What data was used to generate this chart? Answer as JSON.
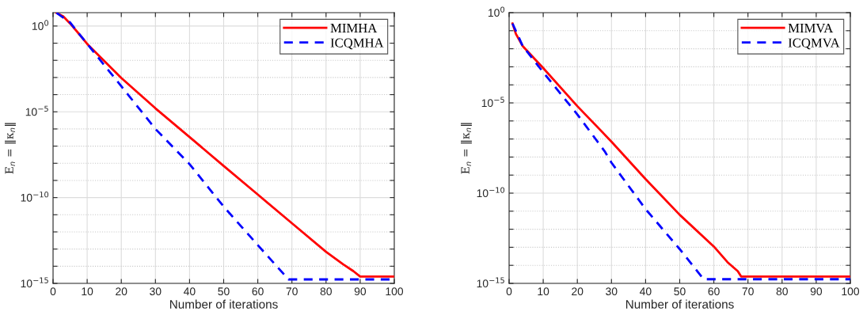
{
  "chart_data": [
    {
      "type": "line",
      "xlabel": "Number of iterations",
      "ylabel": "E$_{n}$ = ‖κ$_{n}$‖",
      "log": "y",
      "grid": true,
      "legend": "top right",
      "xlim": [
        0,
        100
      ],
      "xticks": [
        0,
        10,
        20,
        30,
        40,
        50,
        60,
        70,
        80,
        90,
        100
      ],
      "ylim": [
        1e-15,
        6
      ],
      "yticks": [
        {
          "value": 1,
          "label": "10$^{0}$"
        },
        {
          "value": 0.1,
          "label": null
        },
        {
          "value": 0.01,
          "label": null
        },
        {
          "value": 0.001,
          "label": null
        },
        {
          "value": 0.0001,
          "label": null
        },
        {
          "value": 1e-05,
          "label": "10$^{−5}$"
        },
        {
          "value": 1e-06,
          "label": null
        },
        {
          "value": 1e-07,
          "label": null
        },
        {
          "value": 1e-08,
          "label": null
        },
        {
          "value": 1e-09,
          "label": null
        },
        {
          "value": 1e-10,
          "label": "10$^{−10}$"
        },
        {
          "value": 1e-11,
          "label": null
        },
        {
          "value": 1e-12,
          "label": null
        },
        {
          "value": 1e-13,
          "label": null
        },
        {
          "value": 1e-14,
          "label": null
        },
        {
          "value": 1e-15,
          "label": "10$^{−15}$"
        }
      ],
      "series": [
        {
          "name": "MIMHA",
          "color": "#ff0000",
          "line_style": "solid",
          "x": [
            1,
            3,
            5,
            7,
            10,
            20,
            30,
            40,
            50,
            60,
            70,
            80,
            85,
            88,
            90,
            100
          ],
          "values": [
            5.9,
            3.6,
            1.4,
            0.48,
            0.091,
            0.00093,
            1.6e-05,
            3.4e-07,
            7e-09,
            1.5e-10,
            3.2e-12,
            6.9e-14,
            1.3e-14,
            5.2e-15,
            2.5e-15,
            2.5e-15
          ]
        },
        {
          "name": "ICQMHA",
          "color": "#0000ff",
          "line_style": "dashed",
          "x": [
            1,
            5,
            10,
            20,
            30,
            40,
            50,
            60,
            69,
            100
          ],
          "values": [
            5.9,
            1.6,
            0.091,
            0.00031,
            1e-06,
            8.9e-09,
            3e-11,
            1.7e-13,
            1.7e-15,
            1.7e-15
          ]
        }
      ]
    },
    {
      "type": "line",
      "xlabel": "Number of iterations",
      "ylabel": "E$_{n}$ = ‖κ$_{n}$‖",
      "log": "y",
      "grid": true,
      "legend": "top right",
      "xlim": [
        0,
        100
      ],
      "xticks": [
        0,
        10,
        20,
        30,
        40,
        50,
        60,
        70,
        80,
        90,
        100
      ],
      "ylim": [
        1e-15,
        1
      ],
      "yticks": [
        {
          "value": 1,
          "label": "10$^{0}$"
        },
        {
          "value": 0.1,
          "label": null
        },
        {
          "value": 0.01,
          "label": null
        },
        {
          "value": 0.001,
          "label": null
        },
        {
          "value": 0.0001,
          "label": null
        },
        {
          "value": 1e-05,
          "label": "10$^{−5}$"
        },
        {
          "value": 1e-06,
          "label": null
        },
        {
          "value": 1e-07,
          "label": null
        },
        {
          "value": 1e-08,
          "label": null
        },
        {
          "value": 1e-09,
          "label": null
        },
        {
          "value": 1e-10,
          "label": "10$^{−10}$"
        },
        {
          "value": 1e-11,
          "label": null
        },
        {
          "value": 1e-12,
          "label": null
        },
        {
          "value": 1e-13,
          "label": null
        },
        {
          "value": 1e-14,
          "label": null
        },
        {
          "value": 1e-15,
          "label": "10$^{−15}$"
        }
      ],
      "series": [
        {
          "name": "MIMVA",
          "color": "#ff0000",
          "line_style": "solid",
          "x": [
            1,
            2,
            4,
            10,
            20,
            30,
            40,
            50,
            60,
            64,
            67,
            68,
            100
          ],
          "values": [
            0.25,
            0.066,
            0.014,
            0.00085,
            6.6e-06,
            7.1e-08,
            6e-10,
            6.3e-12,
            1.1e-13,
            1.5e-14,
            4.8e-15,
            2.4e-15,
            2.4e-15
          ]
        },
        {
          "name": "ICQMVA",
          "color": "#0000ff",
          "line_style": "dashed",
          "x": [
            1,
            4,
            10,
            20,
            28,
            30,
            40,
            50,
            57,
            100
          ],
          "values": [
            0.25,
            0.014,
            0.0005,
            2.3e-06,
            2.1e-08,
            4.9e-09,
            1.3e-11,
            7.9e-14,
            1.7e-15,
            1.7e-15
          ]
        }
      ]
    }
  ]
}
